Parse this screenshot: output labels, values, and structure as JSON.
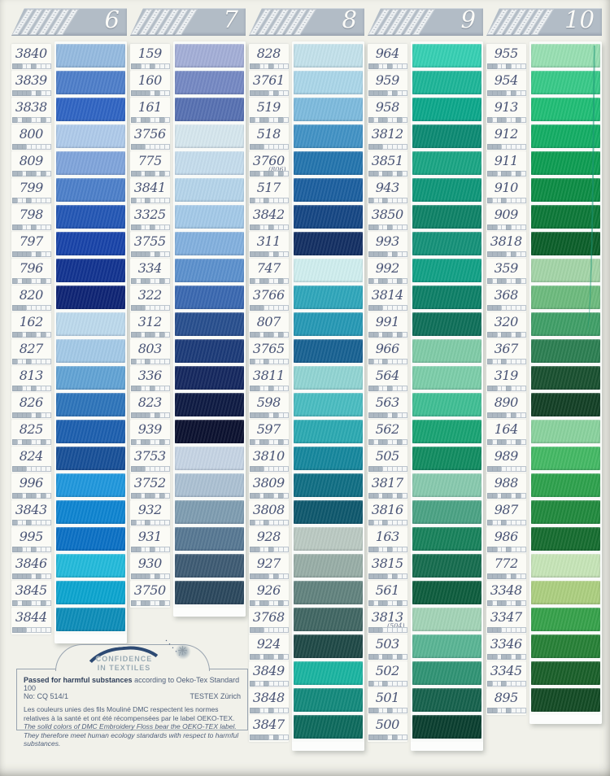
{
  "card": {
    "type": "thread-color-card",
    "brand_colors": {
      "tab_bg": "#b2bcc6",
      "page_bg": "#f1f1ea",
      "label_bg": "#fbfbf6",
      "code_text": "#4a5576",
      "logo_arc": "#2d4a73",
      "footer_text": "#50607b"
    }
  },
  "columns": [
    {
      "number": "6",
      "rows": [
        {
          "code": "3840",
          "color": "#94badf"
        },
        {
          "code": "3839",
          "color": "#4d7ec9"
        },
        {
          "code": "3838",
          "color": "#2f64c2"
        },
        {
          "code": "800",
          "color": "#aecae9"
        },
        {
          "code": "809",
          "color": "#7fa4da"
        },
        {
          "code": "799",
          "color": "#4c7fc9"
        },
        {
          "code": "798",
          "color": "#2356b4"
        },
        {
          "code": "797",
          "color": "#1843a8"
        },
        {
          "code": "796",
          "color": "#11328f"
        },
        {
          "code": "820",
          "color": "#0d2373"
        },
        {
          "code": "162",
          "color": "#bcd9ec"
        },
        {
          "code": "827",
          "color": "#a3c9e6"
        },
        {
          "code": "813",
          "color": "#61a3d4"
        },
        {
          "code": "826",
          "color": "#2d74ba"
        },
        {
          "code": "825",
          "color": "#1c5fae"
        },
        {
          "code": "824",
          "color": "#174f97"
        },
        {
          "code": "996",
          "color": "#1f97dc"
        },
        {
          "code": "3843",
          "color": "#0d84d0"
        },
        {
          "code": "995",
          "color": "#0a70c4"
        },
        {
          "code": "3846",
          "color": "#22bada"
        },
        {
          "code": "3845",
          "color": "#0ba5cf"
        },
        {
          "code": "3844",
          "color": "#0c8db8"
        }
      ]
    },
    {
      "number": "7",
      "rows": [
        {
          "code": "159",
          "color": "#a3aed6"
        },
        {
          "code": "160",
          "color": "#7488c2"
        },
        {
          "code": "161",
          "color": "#5670b1"
        },
        {
          "code": "3756",
          "color": "#d5e6ed"
        },
        {
          "code": "775",
          "color": "#c4dcec"
        },
        {
          "code": "3841",
          "color": "#b4d4e9"
        },
        {
          "code": "3325",
          "color": "#a3c9e7"
        },
        {
          "code": "3755",
          "color": "#82b0dd"
        },
        {
          "code": "334",
          "color": "#5b90cc"
        },
        {
          "code": "322",
          "color": "#3a68b0"
        },
        {
          "code": "312",
          "color": "#274e8d"
        },
        {
          "code": "803",
          "color": "#1b3a77"
        },
        {
          "code": "336",
          "color": "#14275e"
        },
        {
          "code": "823",
          "color": "#0d1a42"
        },
        {
          "code": "939",
          "color": "#0a102e"
        },
        {
          "code": "3753",
          "color": "#c5d4e3"
        },
        {
          "code": "3752",
          "color": "#abc0d2"
        },
        {
          "code": "932",
          "color": "#7e9cb0"
        },
        {
          "code": "931",
          "color": "#567792"
        },
        {
          "code": "930",
          "color": "#3d5a72"
        },
        {
          "code": "3750",
          "color": "#2a475c"
        }
      ]
    },
    {
      "number": "8",
      "rows": [
        {
          "code": "828",
          "color": "#c2e1ea"
        },
        {
          "code": "3761",
          "color": "#aad6e8"
        },
        {
          "code": "519",
          "color": "#7cbadc"
        },
        {
          "code": "518",
          "color": "#4192c4"
        },
        {
          "code": "3760",
          "alt": "(806)",
          "color": "#2374ad"
        },
        {
          "code": "517",
          "color": "#1b5f9e"
        },
        {
          "code": "3842",
          "color": "#154683"
        },
        {
          "code": "311",
          "color": "#122e62"
        },
        {
          "code": "747",
          "color": "#cfeeee"
        },
        {
          "code": "3766",
          "color": "#2ea6ba"
        },
        {
          "code": "807",
          "color": "#2598b4"
        },
        {
          "code": "3765",
          "color": "#176191"
        },
        {
          "code": "3811",
          "color": "#90d4d2"
        },
        {
          "code": "598",
          "color": "#49bcc0"
        },
        {
          "code": "597",
          "color": "#2ba9b1"
        },
        {
          "code": "3810",
          "color": "#15879c"
        },
        {
          "code": "3809",
          "color": "#0f6e83"
        },
        {
          "code": "3808",
          "color": "#0d576c"
        },
        {
          "code": "928",
          "color": "#bac9c1"
        },
        {
          "code": "927",
          "color": "#97ada5"
        },
        {
          "code": "926",
          "color": "#61827d"
        },
        {
          "code": "3768",
          "color": "#406662"
        },
        {
          "code": "924",
          "color": "#1e4845"
        },
        {
          "code": "3849",
          "color": "#19b4a0"
        },
        {
          "code": "3848",
          "color": "#12897b"
        },
        {
          "code": "3847",
          "color": "#0c6a5c"
        }
      ]
    },
    {
      "number": "9",
      "rows": [
        {
          "code": "964",
          "color": "#35cfb2"
        },
        {
          "code": "959",
          "color": "#1cb597"
        },
        {
          "code": "958",
          "color": "#0ba78a"
        },
        {
          "code": "3812",
          "color": "#0b8a72"
        },
        {
          "code": "3851",
          "color": "#19a583"
        },
        {
          "code": "943",
          "color": "#0d9678"
        },
        {
          "code": "3850",
          "color": "#0d8266"
        },
        {
          "code": "993",
          "color": "#149178"
        },
        {
          "code": "992",
          "color": "#10a085"
        },
        {
          "code": "3814",
          "color": "#0c7f66"
        },
        {
          "code": "991",
          "color": "#0d6f58"
        },
        {
          "code": "966",
          "color": "#7fcba6"
        },
        {
          "code": "564",
          "color": "#7bcda8"
        },
        {
          "code": "563",
          "color": "#3fbe93"
        },
        {
          "code": "562",
          "color": "#18a372"
        },
        {
          "code": "505",
          "color": "#108c60"
        },
        {
          "code": "3817",
          "color": "#87c9ad"
        },
        {
          "code": "3816",
          "color": "#4aa283"
        },
        {
          "code": "163",
          "color": "#17815a"
        },
        {
          "code": "3815",
          "color": "#156c4d"
        },
        {
          "code": "561",
          "color": "#0c5c3c"
        },
        {
          "code": "3813",
          "alt": "(504)",
          "color": "#a2d3b5"
        },
        {
          "code": "503",
          "color": "#58b493"
        },
        {
          "code": "502",
          "color": "#2f9373"
        },
        {
          "code": "501",
          "color": "#15614b"
        },
        {
          "code": "500",
          "color": "#093e2e"
        }
      ]
    },
    {
      "number": "10",
      "rows": [
        {
          "code": "955",
          "color": "#97dfb1"
        },
        {
          "code": "954",
          "color": "#37c987"
        },
        {
          "code": "913",
          "color": "#1fbd74"
        },
        {
          "code": "912",
          "color": "#12ad63"
        },
        {
          "code": "911",
          "color": "#0c9c51"
        },
        {
          "code": "910",
          "color": "#0b8c43"
        },
        {
          "code": "909",
          "color": "#0b7736"
        },
        {
          "code": "3818",
          "color": "#0a5e28"
        },
        {
          "code": "359",
          "color": "#a3d4a6"
        },
        {
          "code": "368",
          "color": "#6cba7c"
        },
        {
          "code": "320",
          "color": "#3f9e66"
        },
        {
          "code": "367",
          "color": "#2b7e50"
        },
        {
          "code": "319",
          "color": "#184f2e"
        },
        {
          "code": "890",
          "color": "#123f24"
        },
        {
          "code": "164",
          "color": "#89d29c"
        },
        {
          "code": "989",
          "color": "#43b863"
        },
        {
          "code": "988",
          "color": "#2da14b"
        },
        {
          "code": "987",
          "color": "#20893c"
        },
        {
          "code": "986",
          "color": "#156c2e"
        },
        {
          "code": "772",
          "color": "#c6e4b6"
        },
        {
          "code": "3348",
          "color": "#abce7e"
        },
        {
          "code": "3347",
          "color": "#35a149"
        },
        {
          "code": "3346",
          "color": "#268035"
        },
        {
          "code": "3345",
          "color": "#195f28"
        },
        {
          "code": "895",
          "color": "#124a23"
        }
      ]
    }
  ],
  "tick_patterns": [
    [
      1,
      1,
      0,
      0,
      1,
      0,
      0,
      0
    ],
    [
      1,
      1,
      1,
      1,
      0,
      1,
      0,
      0
    ],
    [
      1,
      0,
      1,
      1,
      0,
      0,
      1,
      0
    ],
    [
      1,
      1,
      1,
      0,
      0,
      0,
      0,
      0
    ],
    [
      1,
      1,
      0,
      1,
      1,
      0,
      1,
      0
    ],
    [
      1,
      0,
      0,
      1,
      0,
      0,
      0,
      0
    ]
  ],
  "footer": {
    "logo_line1": "CONFIDENCE",
    "logo_line2": "IN TEXTILES",
    "passed_bold": "Passed for harmful substances",
    "passed_according": "according to Oeko-Tex Standard 100",
    "no_line": "No: CQ 514/1",
    "testex": "TESTEX Zürich",
    "fr_text": "Les couleurs unies des fils Mouliné DMC respectent les normes relatives à la santé et ont été récompensées par le label OEKO-TEX.",
    "en_text": "The solid colors of DMC Embroidery Floss bear the OEKO-TEX label. They therefore meet human ecology standards with respect to harmful substances."
  }
}
